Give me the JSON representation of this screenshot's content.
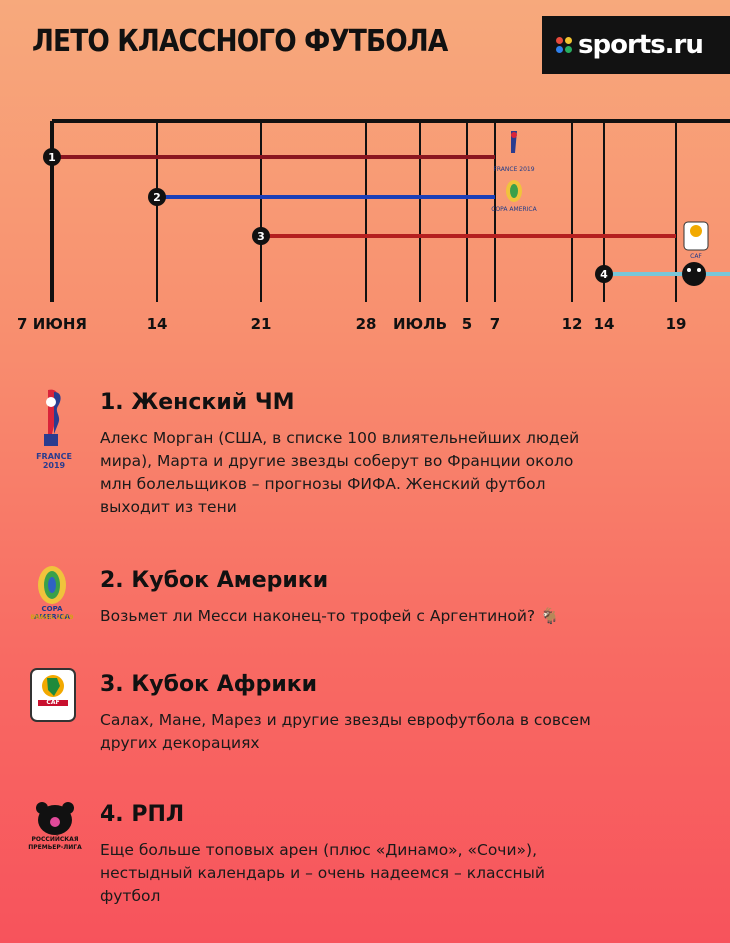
{
  "title": "ЛЕТО КЛАССНОГО ФУТБОЛА",
  "brand": {
    "name": "sports.ru",
    "dot_colors": [
      "#e84a3c",
      "#f4c430",
      "#2f80ed",
      "#27ae60"
    ]
  },
  "timeline": {
    "ticks": [
      "7 ИЮНЯ",
      "14",
      "21",
      "28",
      "ИЮЛЬ",
      "5",
      "7",
      "12",
      "14",
      "19"
    ],
    "bars": [
      {
        "num": "1",
        "color": "#8b1620",
        "logo": "france-2019-logo",
        "logo_text": "FRANCE 2019"
      },
      {
        "num": "2",
        "color": "#1a3fb8",
        "logo": "copa-america-logo",
        "logo_text": "COPA AMERICA"
      },
      {
        "num": "3",
        "color": "#b51f1f",
        "logo": "caf-logo",
        "logo_text": "CAF"
      },
      {
        "num": "4",
        "color": "#79c6d8",
        "logo": "rpl-logo",
        "logo_text": ""
      }
    ]
  },
  "events": [
    {
      "title": "1. Женский ЧМ",
      "text": "Алекс Морган (США, в списке 100 влиятельнейших людей мира), Марта и другие звезды соберут во Франции около млн болельщиков – прогнозы ФИФА. Женский футбол выходит из тени",
      "logo_text": "FRANCE 2019"
    },
    {
      "title": "2. Кубок Америки",
      "text": "Возьмет ли Месси наконец-то трофей с Аргентиной? 🐐",
      "logo_text": "COPA AMERICA",
      "logo_sub": "BRASIL 2019"
    },
    {
      "title": "3. Кубок Африки",
      "text": "Салах, Мане, Марез и другие звезды еврофутбола в совсем других декорациях",
      "logo_text": "CAF"
    },
    {
      "title": "4. РПЛ",
      "text": "Еще больше топовых арен (плюс «Динамо», «Сочи»), нестыдный календарь и – очень надеемся – классный футбол",
      "logo_text": "РОССИЙСКАЯ ПРЕМЬЕР-ЛИГА"
    }
  ]
}
